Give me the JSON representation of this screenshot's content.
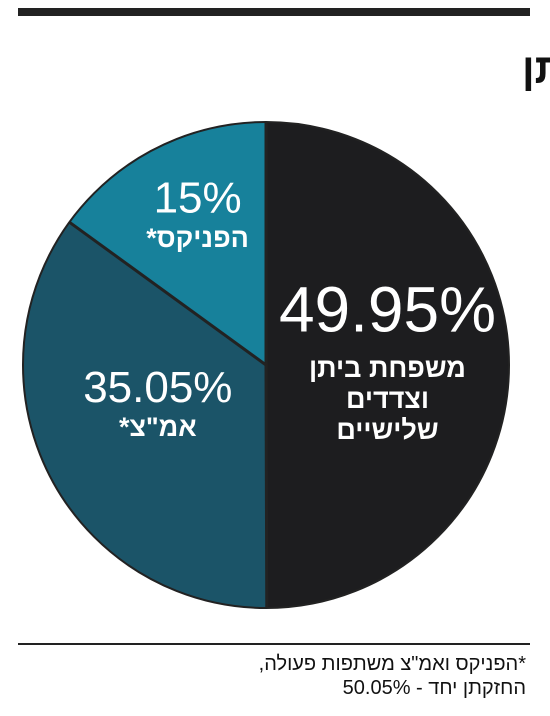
{
  "chart_data": {
    "type": "pie",
    "title": "בעלי המניות ביינות ביתן",
    "categories": [
      "משפחת ביתן וצדדים שלישיים",
      "אמ\"צ*",
      "הפניקס*"
    ],
    "values": [
      49.95,
      35.05,
      15
    ],
    "value_labels": [
      "49.95%",
      "35.05%",
      "15%"
    ],
    "colors": [
      "#1d1d1f",
      "#1b5468",
      "#17819b"
    ],
    "note": "*הפניקס ואמ\"צ משתפות פעולה, החזקתן יחד - 50.05%"
  }
}
